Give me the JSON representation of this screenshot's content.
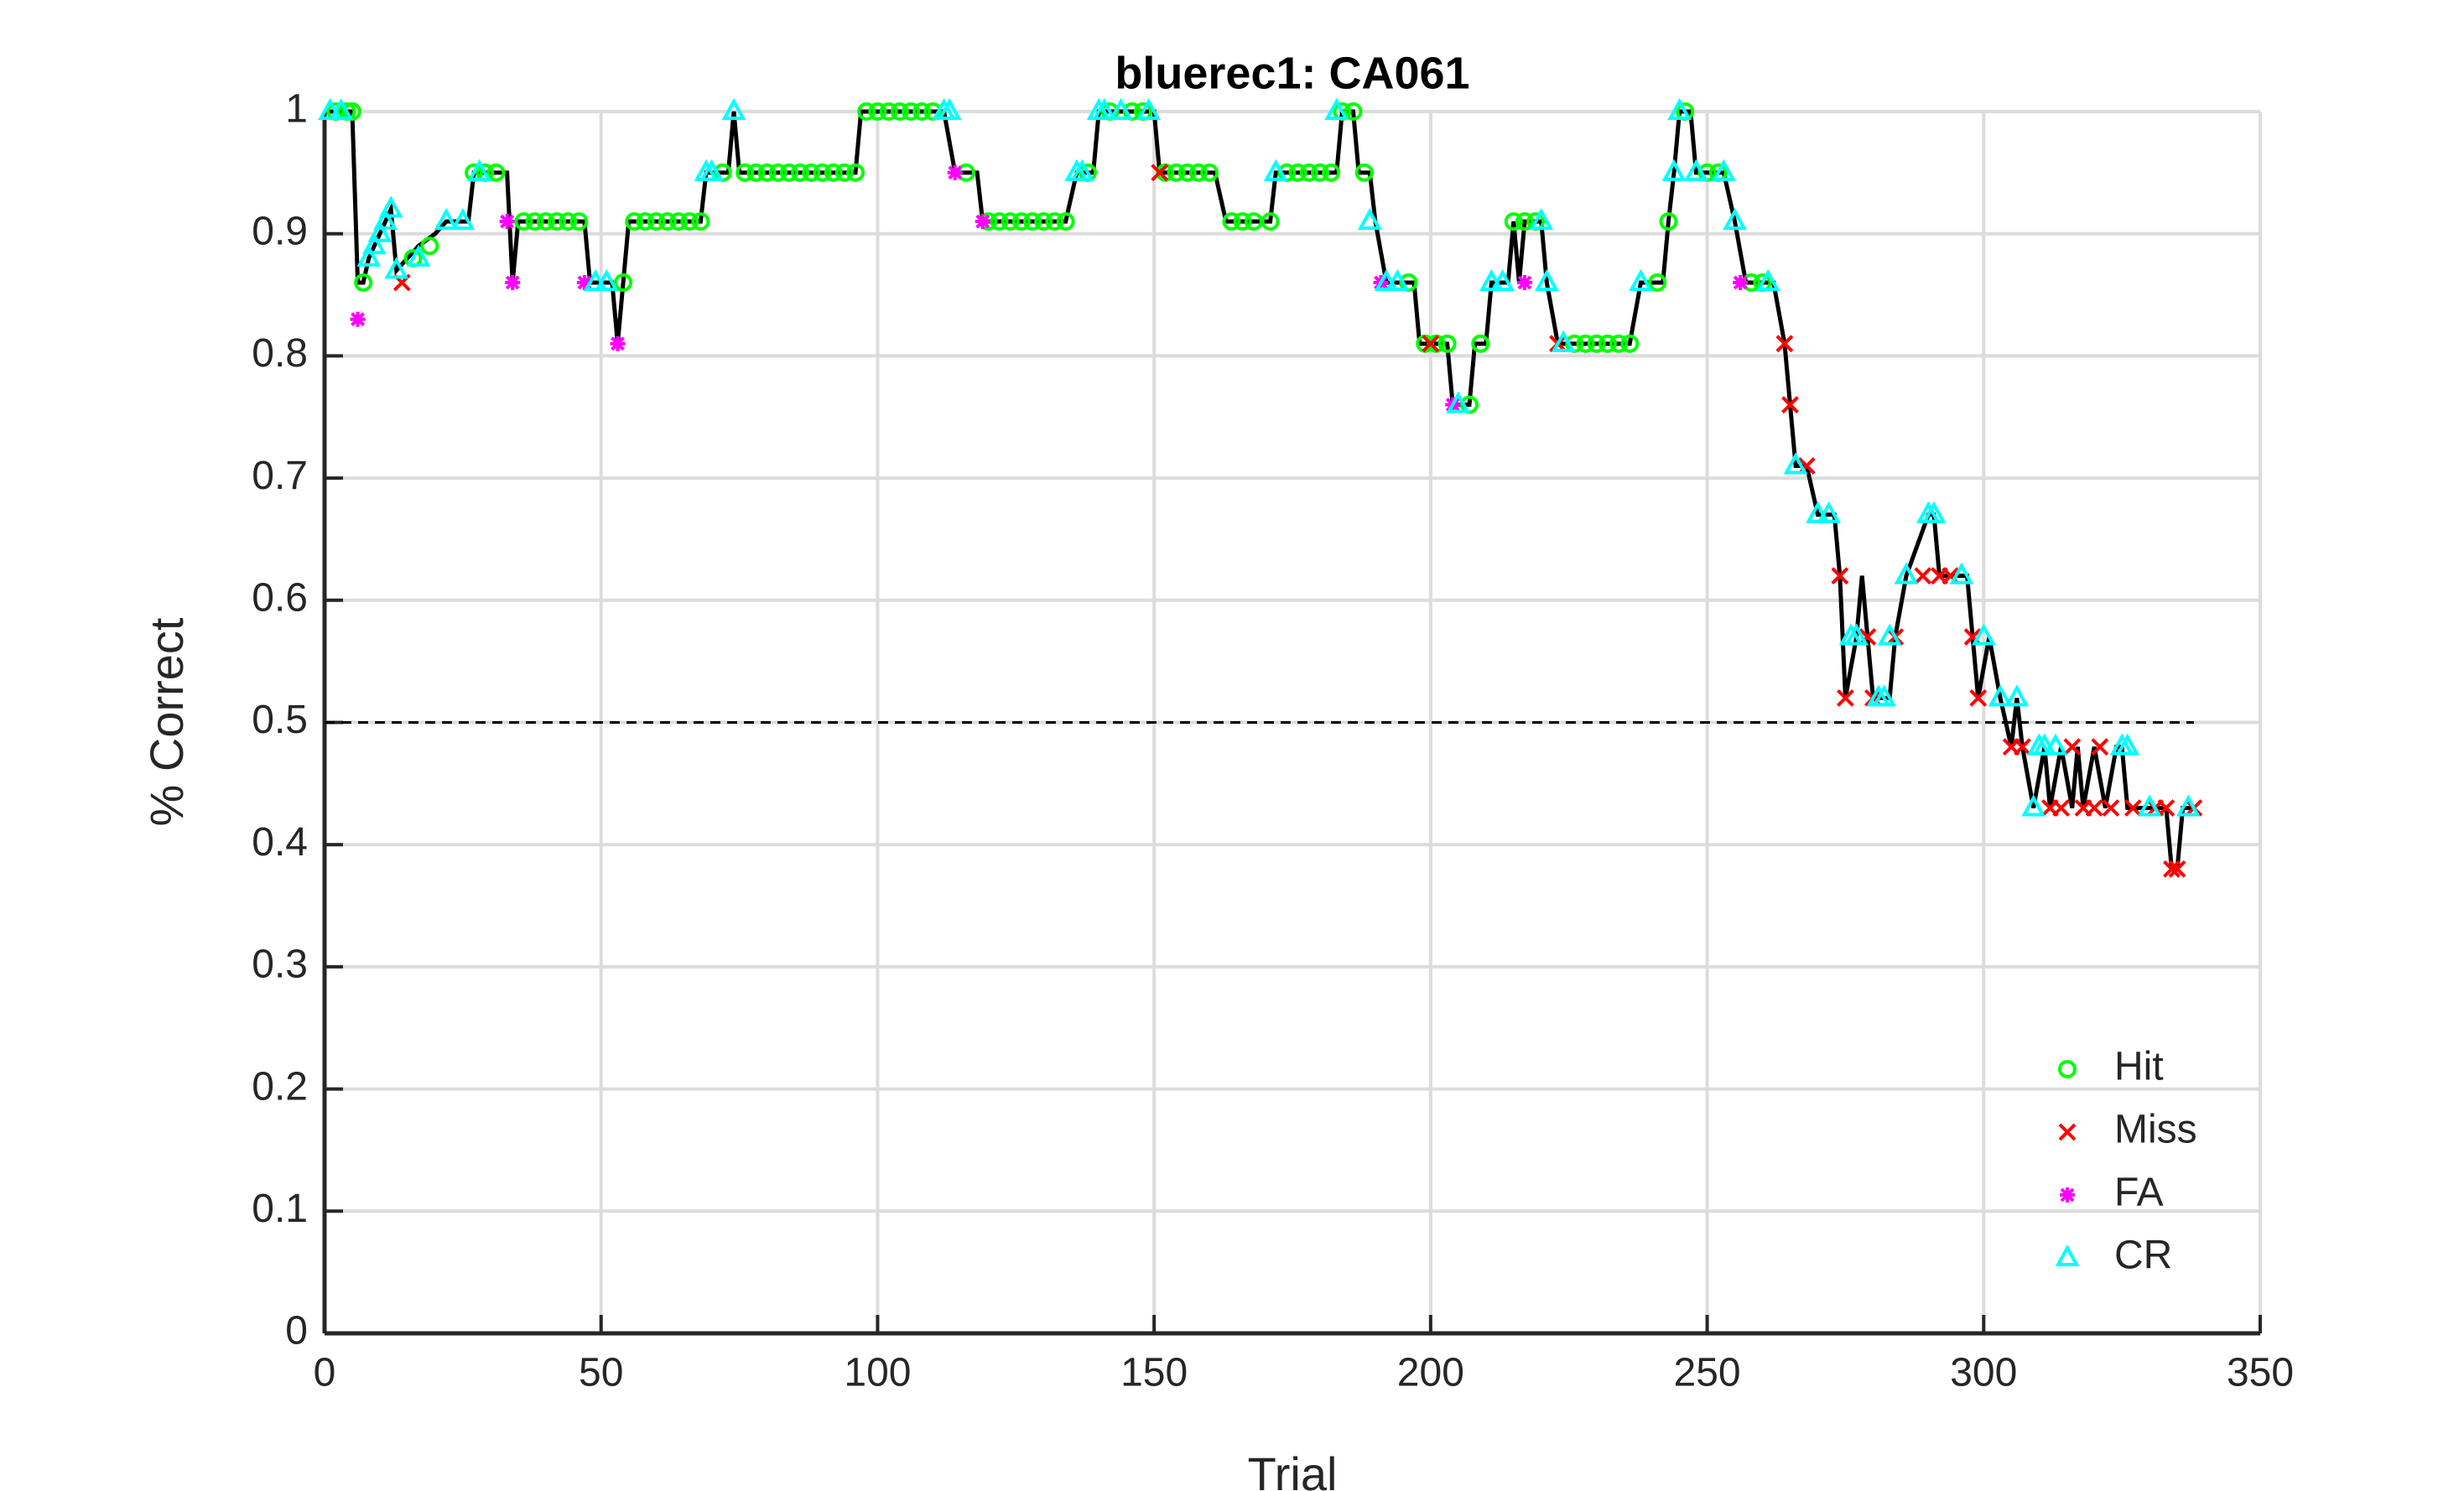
{
  "chart_data": {
    "type": "line-scatter",
    "title": "bluerec1: CA061",
    "x_label": "Trial",
    "y_label": "% Correct",
    "xlim": [
      0,
      350
    ],
    "xticks": [
      0,
      50,
      100,
      150,
      200,
      250,
      300,
      350
    ],
    "ylim": [
      0,
      1
    ],
    "yticks": [
      0,
      0.1,
      0.2,
      0.3,
      0.4,
      0.5,
      0.6,
      0.7,
      0.8,
      0.9,
      1
    ],
    "grid": true,
    "legend": "lower right",
    "hline": {
      "value": 0.5,
      "x": [
        0,
        338
      ],
      "color": "#000000",
      "style": "dashed"
    },
    "line": {
      "color": "#000000",
      "x": [
        1,
        5,
        6,
        7,
        8,
        9,
        10,
        11,
        12,
        13,
        15,
        17,
        20,
        22,
        26,
        27,
        33,
        34,
        35,
        47,
        48,
        52,
        53,
        54,
        55,
        68,
        69,
        73,
        74,
        75,
        96,
        97,
        112,
        114,
        118,
        119,
        134,
        136,
        139,
        140,
        150,
        151,
        161,
        163,
        171,
        172,
        183,
        184,
        186,
        187,
        189,
        190,
        192,
        197,
        198,
        203,
        204,
        207,
        208,
        210,
        211,
        214,
        215,
        216,
        217,
        219,
        220,
        221,
        223,
        236,
        238,
        242,
        243,
        244,
        245,
        247,
        248,
        253,
        255,
        257,
        262,
        264,
        265,
        266,
        268,
        270,
        273,
        274,
        275,
        277,
        278,
        279,
        280,
        283,
        284,
        286,
        290,
        291,
        292,
        297,
        298,
        299,
        301,
        303,
        305,
        306,
        307,
        309,
        311,
        312,
        314,
        316,
        317,
        318,
        320,
        322,
        324,
        325,
        326,
        333,
        334,
        335,
        336,
        338
      ],
      "values": [
        1,
        1,
        0.86,
        0.86,
        0.88,
        0.89,
        0.9,
        0.91,
        0.92,
        0.87,
        0.88,
        0.89,
        0.9,
        0.91,
        0.91,
        0.95,
        0.95,
        0.86,
        0.91,
        0.91,
        0.86,
        0.86,
        0.81,
        0.86,
        0.91,
        0.91,
        0.95,
        0.95,
        1,
        0.95,
        0.95,
        1,
        1,
        0.95,
        0.95,
        0.91,
        0.91,
        0.95,
        0.95,
        1,
        1,
        0.95,
        0.95,
        0.91,
        0.91,
        0.95,
        0.95,
        1,
        1,
        0.95,
        0.95,
        0.91,
        0.86,
        0.86,
        0.81,
        0.81,
        0.76,
        0.76,
        0.81,
        0.81,
        0.86,
        0.86,
        0.91,
        0.86,
        0.91,
        0.91,
        0.91,
        0.86,
        0.81,
        0.81,
        0.86,
        0.86,
        0.91,
        0.95,
        1,
        1,
        0.95,
        0.95,
        0.91,
        0.86,
        0.86,
        0.81,
        0.76,
        0.71,
        0.71,
        0.67,
        0.67,
        0.62,
        0.52,
        0.57,
        0.62,
        0.57,
        0.52,
        0.52,
        0.57,
        0.62,
        0.67,
        0.67,
        0.62,
        0.62,
        0.57,
        0.52,
        0.57,
        0.52,
        0.48,
        0.52,
        0.48,
        0.43,
        0.48,
        0.43,
        0.48,
        0.43,
        0.48,
        0.43,
        0.48,
        0.43,
        0.48,
        0.48,
        0.43,
        0.43,
        0.38,
        0.38,
        0.43,
        0.43
      ]
    },
    "series": [
      {
        "name": "Hit",
        "color": "#00ff00",
        "marker": "circle",
        "x": [
          2,
          4,
          5,
          7,
          16,
          19,
          27,
          29,
          31,
          36,
          38,
          40,
          42,
          44,
          46,
          54,
          56,
          58,
          60,
          62,
          64,
          66,
          68,
          72,
          76,
          78,
          80,
          82,
          84,
          86,
          88,
          90,
          92,
          94,
          96,
          98,
          100,
          102,
          104,
          106,
          108,
          110,
          116,
          120,
          122,
          124,
          126,
          128,
          130,
          132,
          134,
          138,
          142,
          146,
          148,
          152,
          154,
          156,
          158,
          160,
          164,
          166,
          168,
          171,
          174,
          176,
          178,
          180,
          182,
          184,
          186,
          188,
          196,
          199,
          201,
          203,
          207,
          209,
          215,
          217,
          219,
          226,
          228,
          230,
          232,
          234,
          236,
          241,
          243,
          246,
          250,
          252,
          258,
          260
        ],
        "values": [
          1,
          1,
          1,
          0.86,
          0.88,
          0.89,
          0.95,
          0.95,
          0.95,
          0.91,
          0.91,
          0.91,
          0.91,
          0.91,
          0.91,
          0.86,
          0.91,
          0.91,
          0.91,
          0.91,
          0.91,
          0.91,
          0.91,
          0.95,
          0.95,
          0.95,
          0.95,
          0.95,
          0.95,
          0.95,
          0.95,
          0.95,
          0.95,
          0.95,
          0.95,
          1,
          1,
          1,
          1,
          1,
          1,
          1,
          0.95,
          0.91,
          0.91,
          0.91,
          0.91,
          0.91,
          0.91,
          0.91,
          0.91,
          0.95,
          1,
          1,
          1,
          0.95,
          0.95,
          0.95,
          0.95,
          0.95,
          0.91,
          0.91,
          0.91,
          0.91,
          0.95,
          0.95,
          0.95,
          0.95,
          0.95,
          1,
          1,
          0.95,
          0.86,
          0.81,
          0.81,
          0.81,
          0.76,
          0.81,
          0.91,
          0.91,
          0.91,
          0.81,
          0.81,
          0.81,
          0.81,
          0.81,
          0.81,
          0.86,
          0.91,
          1,
          0.95,
          0.95,
          0.86,
          0.86
        ]
      },
      {
        "name": "Miss",
        "color": "#ff0000",
        "marker": "cross",
        "x": [
          14,
          151,
          200,
          223,
          264,
          265,
          268,
          274,
          275,
          279,
          280,
          284,
          289,
          292,
          294,
          298,
          299,
          305,
          307,
          312,
          314,
          316,
          318,
          320,
          321,
          323,
          327,
          331,
          333,
          334,
          335,
          338
        ],
        "values": [
          0.86,
          0.95,
          0.81,
          0.81,
          0.81,
          0.76,
          0.71,
          0.62,
          0.52,
          0.57,
          0.52,
          0.57,
          0.62,
          0.62,
          0.62,
          0.57,
          0.52,
          0.48,
          0.48,
          0.43,
          0.43,
          0.48,
          0.43,
          0.43,
          0.48,
          0.43,
          0.43,
          0.43,
          0.43,
          0.38,
          0.38,
          0.43
        ]
      },
      {
        "name": "FA",
        "color": "#ff00ff",
        "marker": "asterisk",
        "x": [
          6,
          33,
          34,
          47,
          53,
          114,
          119,
          191,
          204,
          217,
          256
        ],
        "values": [
          0.83,
          0.91,
          0.86,
          0.86,
          0.81,
          0.95,
          0.91,
          0.86,
          0.76,
          0.86,
          0.86
        ]
      },
      {
        "name": "CR",
        "color": "#00ffff",
        "marker": "triangle",
        "x": [
          1,
          3,
          8,
          9,
          10,
          11,
          12,
          13,
          17,
          22,
          25,
          28,
          49,
          51,
          69,
          70,
          74,
          112,
          113,
          136,
          137,
          140,
          141,
          144,
          149,
          172,
          183,
          189,
          192,
          194,
          205,
          211,
          213,
          220,
          221,
          224,
          238,
          244,
          245,
          248,
          253,
          255,
          261,
          266,
          270,
          272,
          276,
          277,
          281,
          282,
          283,
          286,
          290,
          291,
          296,
          300,
          303,
          306,
          309,
          310,
          311,
          313,
          325,
          326,
          330,
          337
        ],
        "values": [
          1,
          1,
          0.88,
          0.89,
          0.9,
          0.91,
          0.92,
          0.87,
          0.88,
          0.91,
          0.91,
          0.95,
          0.86,
          0.86,
          0.95,
          0.95,
          1,
          1,
          1,
          0.95,
          0.95,
          1,
          1,
          1,
          1,
          0.95,
          1,
          0.91,
          0.86,
          0.86,
          0.76,
          0.86,
          0.86,
          0.91,
          0.86,
          0.81,
          0.86,
          0.95,
          1,
          0.95,
          0.95,
          0.91,
          0.86,
          0.71,
          0.67,
          0.67,
          0.57,
          0.57,
          0.52,
          0.52,
          0.57,
          0.62,
          0.67,
          0.67,
          0.62,
          0.57,
          0.52,
          0.52,
          0.43,
          0.48,
          0.48,
          0.48,
          0.48,
          0.48,
          0.43,
          0.43
        ]
      }
    ]
  }
}
